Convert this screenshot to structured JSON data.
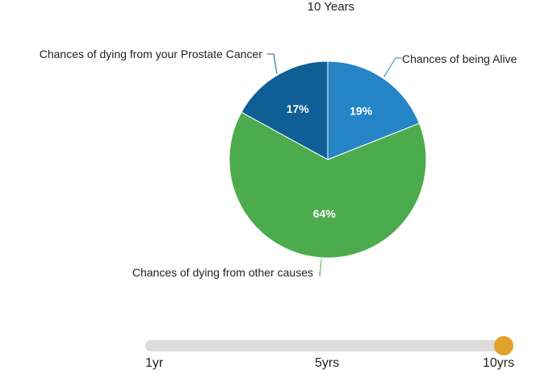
{
  "chart_data": {
    "type": "pie",
    "title": "10 Years",
    "slices": [
      {
        "label": "Chances of being Alive",
        "value": 19,
        "display": "19%",
        "color": "#2484c6"
      },
      {
        "label": "Chances of dying from other causes",
        "value": 64,
        "display": "64%",
        "color": "#4cab4c"
      },
      {
        "label": "Chances of dying from your Prostate Cancer",
        "value": 17,
        "display": "17%",
        "color": "#0f5e96"
      }
    ],
    "start_angle": "12 o'clock, clockwise"
  },
  "timeline": {
    "ticks": [
      "1yr",
      "5yrs",
      "10yrs"
    ],
    "selected": "10yrs",
    "position": 1.0,
    "track_color": "#dcdcdc",
    "knob_color": "#dfa22a"
  }
}
